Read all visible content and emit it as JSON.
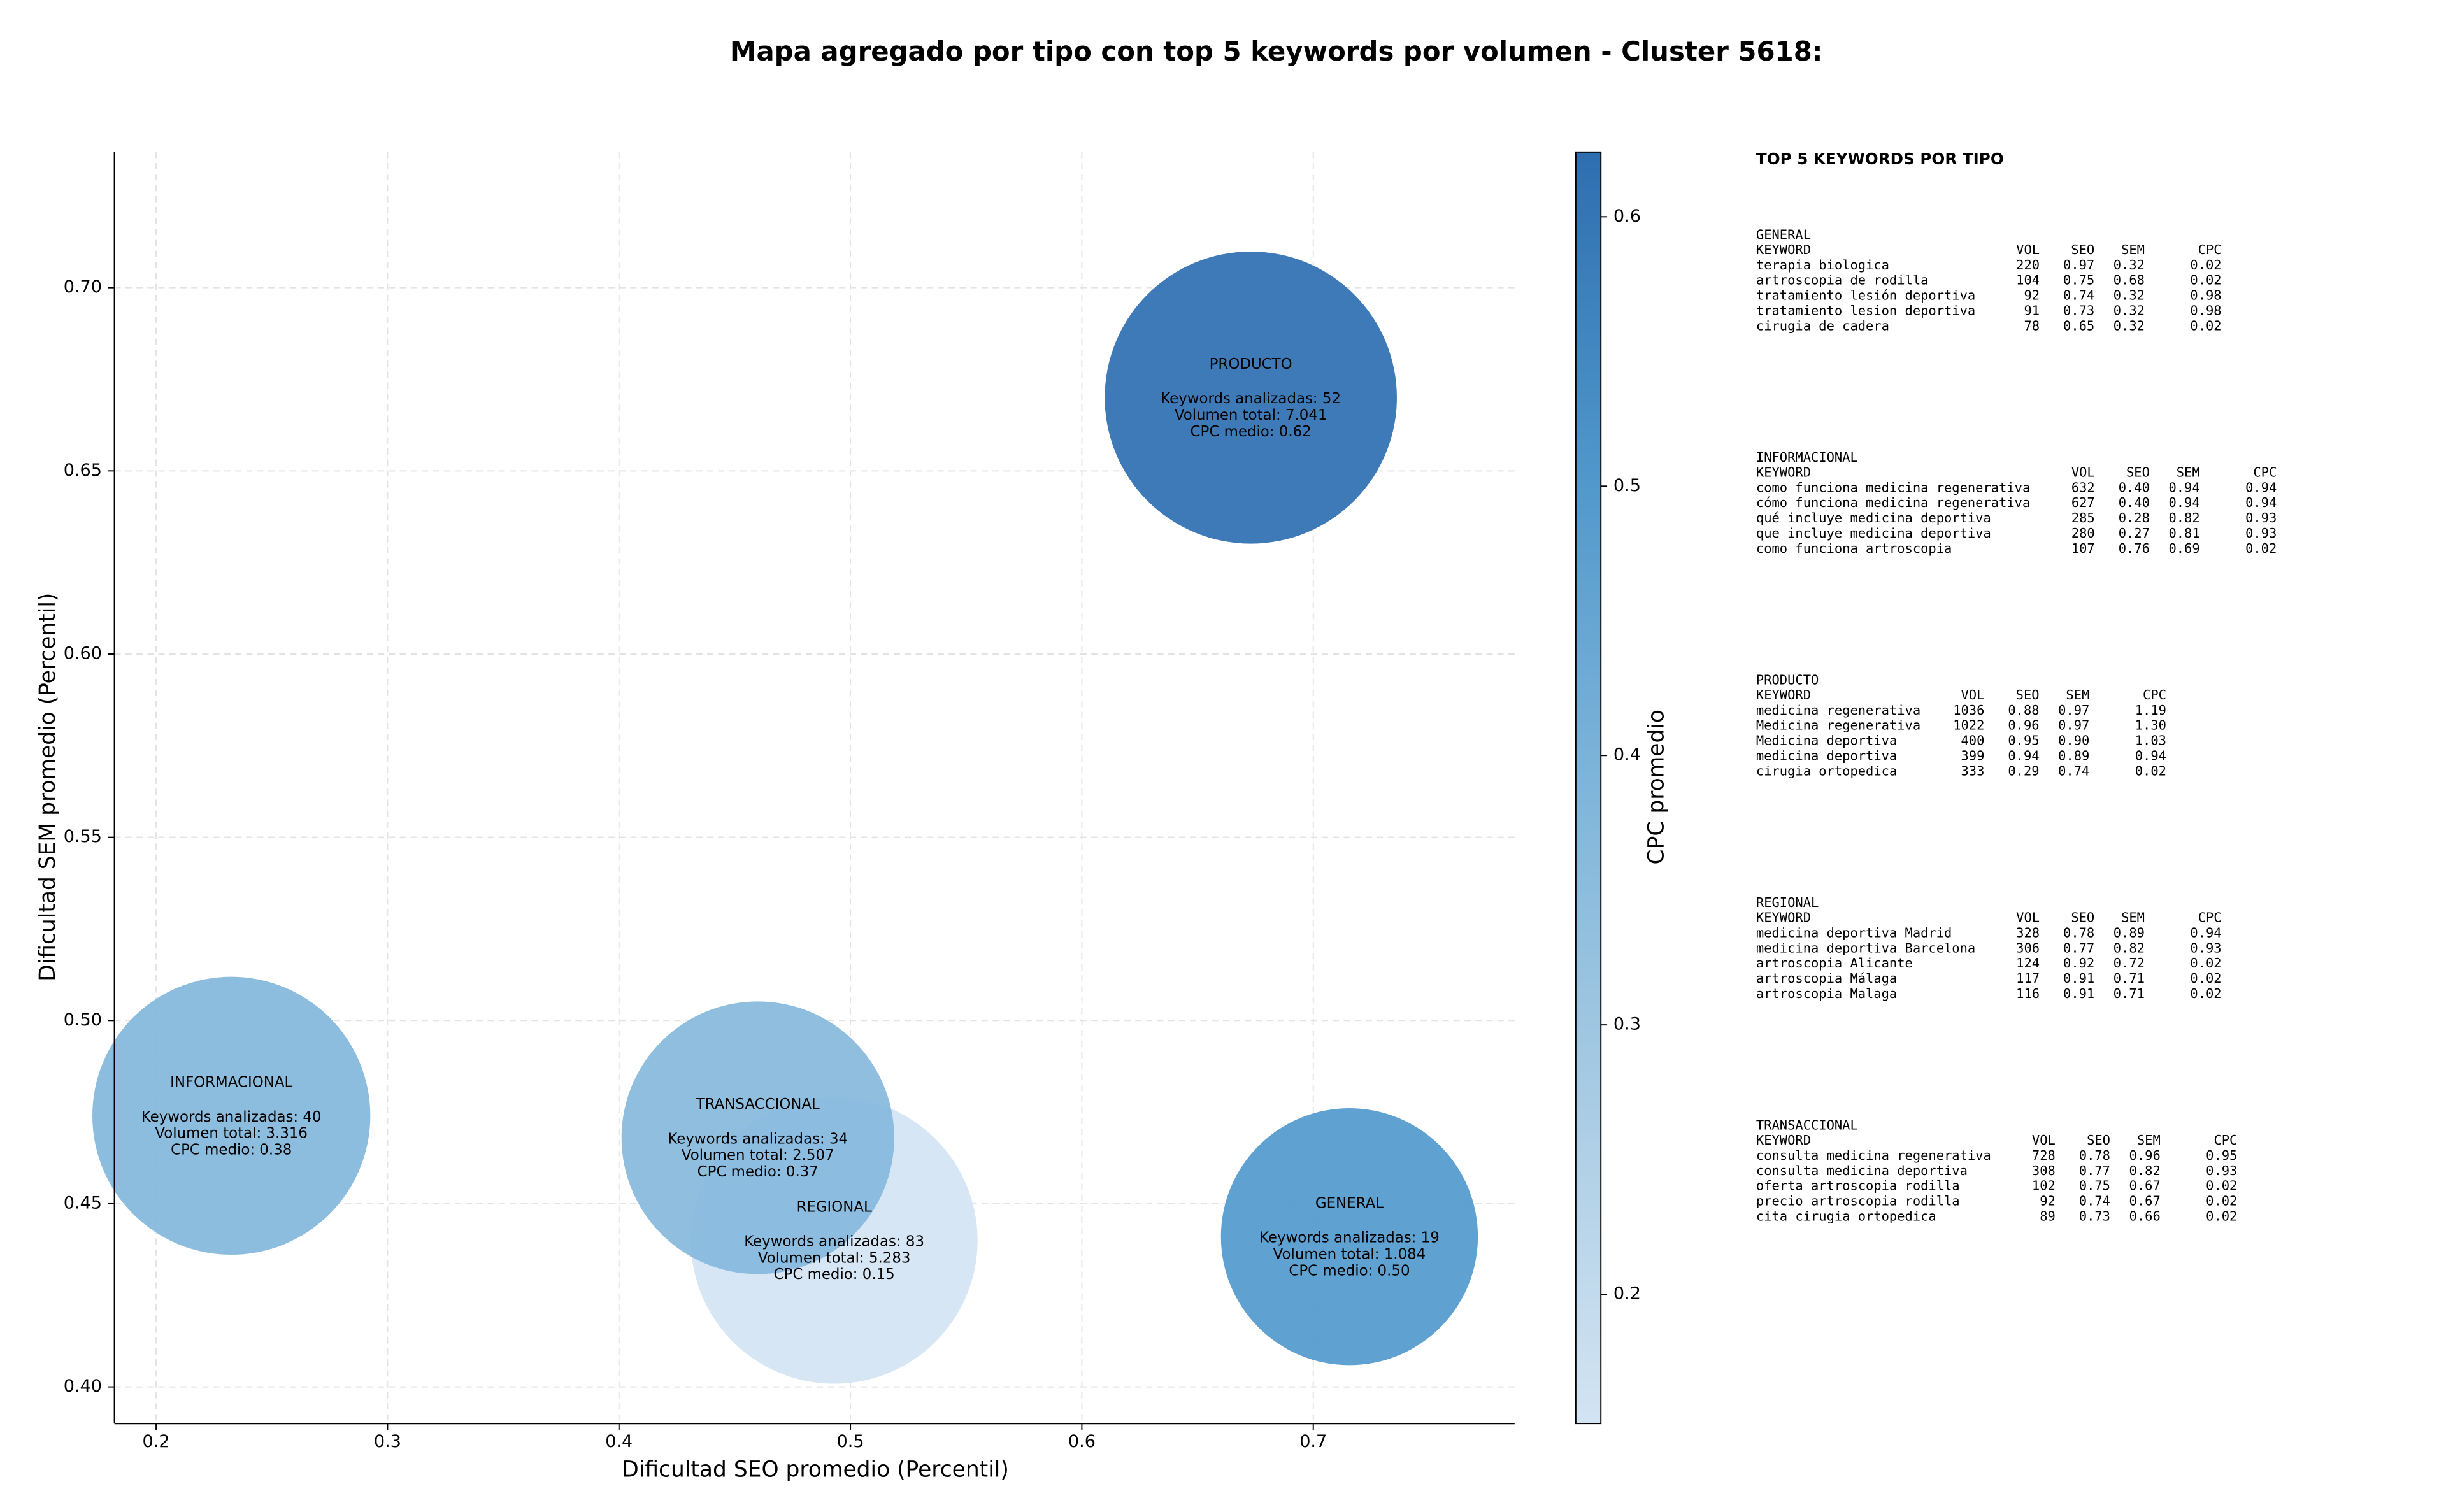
{
  "chart_data": {
    "type": "bubble",
    "title": "Mapa agregado por tipo con top 5 keywords por volumen - Cluster 5618:",
    "xlabel": "Dificultad SEO promedio (Percentil)",
    "ylabel": "Dificultad SEM promedio (Percentil)",
    "xlim": [
      0.182,
      0.787
    ],
    "ylim": [
      0.39,
      0.737
    ],
    "xticks": [
      0.2,
      0.3,
      0.4,
      0.5,
      0.6,
      0.7
    ],
    "yticks": [
      {
        "value": 0.4,
        "label": "0.40"
      },
      {
        "value": 0.45,
        "label": "0.45"
      },
      {
        "value": 0.5,
        "label": "0.50"
      },
      {
        "value": 0.55,
        "label": "0.55"
      },
      {
        "value": 0.6,
        "label": "0.60"
      },
      {
        "value": 0.65,
        "label": "0.65"
      },
      {
        "value": 0.7,
        "label": "0.70"
      }
    ],
    "grid": true,
    "points": [
      {
        "label": "INFORMACIONAL",
        "x": 0.2325,
        "y": 0.474,
        "volume": 3316,
        "cpc": 0.38,
        "text": [
          "Keywords analizadas: 40",
          "Volumen total: 3.316",
          "CPC medio: 0.38"
        ]
      },
      {
        "label": "PRODUCTO",
        "x": 0.673,
        "y": 0.67,
        "volume": 7041,
        "cpc": 0.62,
        "text": [
          "Keywords analizadas: 52",
          "Volumen total: 7.041",
          "CPC medio: 0.62"
        ]
      },
      {
        "label": "REGIONAL",
        "x": 0.493,
        "y": 0.44,
        "volume": 5283,
        "cpc": 0.15,
        "text": [
          "Keywords analizadas: 83",
          "Volumen total: 5.283",
          "CPC medio: 0.15"
        ]
      },
      {
        "label": "TRANSACCIONAL",
        "x": 0.46,
        "y": 0.468,
        "volume": 2507,
        "cpc": 0.37,
        "text": [
          "Keywords analizadas: 34",
          "Volumen total: 2.507",
          "CPC medio: 0.37"
        ]
      },
      {
        "label": "GENERAL",
        "x": 0.7156,
        "y": 0.441,
        "volume": 1084,
        "cpc": 0.5,
        "text": [
          "Keywords analizadas: 19",
          "Volumen total: 1.084",
          "CPC medio: 0.50"
        ]
      }
    ],
    "colorbar": {
      "label": "CPC promedio",
      "lim": [
        0.152,
        0.624
      ],
      "ticks": [
        0.2,
        0.3,
        0.4,
        0.5,
        0.6
      ],
      "colormap": [
        "#d3e4f3",
        "#a9cce4",
        "#7fb5da",
        "#4f97cb",
        "#2d6eb0"
      ]
    }
  },
  "panel": {
    "title": "TOP 5 KEYWORDS POR TIPO",
    "columns": [
      "KEYWORD",
      "VOL",
      "SEO",
      "SEM",
      "CPC"
    ],
    "sections": [
      {
        "name": "GENERAL",
        "rows": [
          [
            "terapia biologica",
            "220",
            "0.97",
            "0.32",
            "0.02"
          ],
          [
            "artroscopia de rodilla",
            "104",
            "0.75",
            "0.68",
            "0.02"
          ],
          [
            "tratamiento lesión deportiva",
            "92",
            "0.74",
            "0.32",
            "0.98"
          ],
          [
            "tratamiento lesion deportiva",
            "91",
            "0.73",
            "0.32",
            "0.98"
          ],
          [
            "cirugia de cadera",
            "78",
            "0.65",
            "0.32",
            "0.02"
          ]
        ]
      },
      {
        "name": "INFORMACIONAL",
        "rows": [
          [
            "como funciona medicina regenerativa",
            "632",
            "0.40",
            "0.94",
            "0.94"
          ],
          [
            "cómo funciona medicina regenerativa",
            "627",
            "0.40",
            "0.94",
            "0.94"
          ],
          [
            "qué incluye medicina deportiva",
            "285",
            "0.28",
            "0.82",
            "0.93"
          ],
          [
            "que incluye medicina deportiva",
            "280",
            "0.27",
            "0.81",
            "0.93"
          ],
          [
            "como funciona artroscopia",
            "107",
            "0.76",
            "0.69",
            "0.02"
          ]
        ]
      },
      {
        "name": "PRODUCTO",
        "rows": [
          [
            "medicina regenerativa",
            "1036",
            "0.88",
            "0.97",
            "1.19"
          ],
          [
            "Medicina regenerativa",
            "1022",
            "0.96",
            "0.97",
            "1.30"
          ],
          [
            "Medicina deportiva",
            "400",
            "0.95",
            "0.90",
            "1.03"
          ],
          [
            "medicina deportiva",
            "399",
            "0.94",
            "0.89",
            "0.94"
          ],
          [
            "cirugia ortopedica",
            "333",
            "0.29",
            "0.74",
            "0.02"
          ]
        ]
      },
      {
        "name": "REGIONAL",
        "rows": [
          [
            "medicina deportiva Madrid",
            "328",
            "0.78",
            "0.89",
            "0.94"
          ],
          [
            "medicina deportiva Barcelona",
            "306",
            "0.77",
            "0.82",
            "0.93"
          ],
          [
            "artroscopia Alicante",
            "124",
            "0.92",
            "0.72",
            "0.02"
          ],
          [
            "artroscopia Málaga",
            "117",
            "0.91",
            "0.71",
            "0.02"
          ],
          [
            "artroscopia Malaga",
            "116",
            "0.91",
            "0.71",
            "0.02"
          ]
        ]
      },
      {
        "name": "TRANSACCIONAL",
        "rows": [
          [
            "consulta medicina regenerativa",
            "728",
            "0.78",
            "0.96",
            "0.95"
          ],
          [
            "consulta medicina deportiva",
            "308",
            "0.77",
            "0.82",
            "0.93"
          ],
          [
            "oferta artroscopia rodilla",
            "102",
            "0.75",
            "0.67",
            "0.02"
          ],
          [
            "precio artroscopia rodilla",
            "92",
            "0.74",
            "0.67",
            "0.02"
          ],
          [
            "cita cirugia ortopedica",
            "89",
            "0.73",
            "0.66",
            "0.02"
          ]
        ]
      }
    ]
  }
}
